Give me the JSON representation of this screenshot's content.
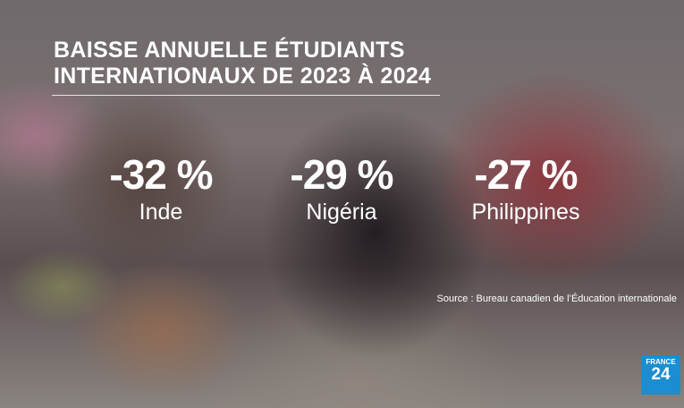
{
  "title": [
    "BAISSE ANNUELLE ÉTUDIANTS",
    "INTERNATIONAUX DE 2023 À 2024"
  ],
  "stats": [
    {
      "value": "-32 %",
      "label": "Inde"
    },
    {
      "value": "-29 %",
      "label": "Nigéria"
    },
    {
      "value": "-27 %",
      "label": "Philippines"
    }
  ],
  "source": "Source : Bureau canadien de l’Éducation internationale",
  "logo": [
    "FRANCE",
    "24"
  ]
}
